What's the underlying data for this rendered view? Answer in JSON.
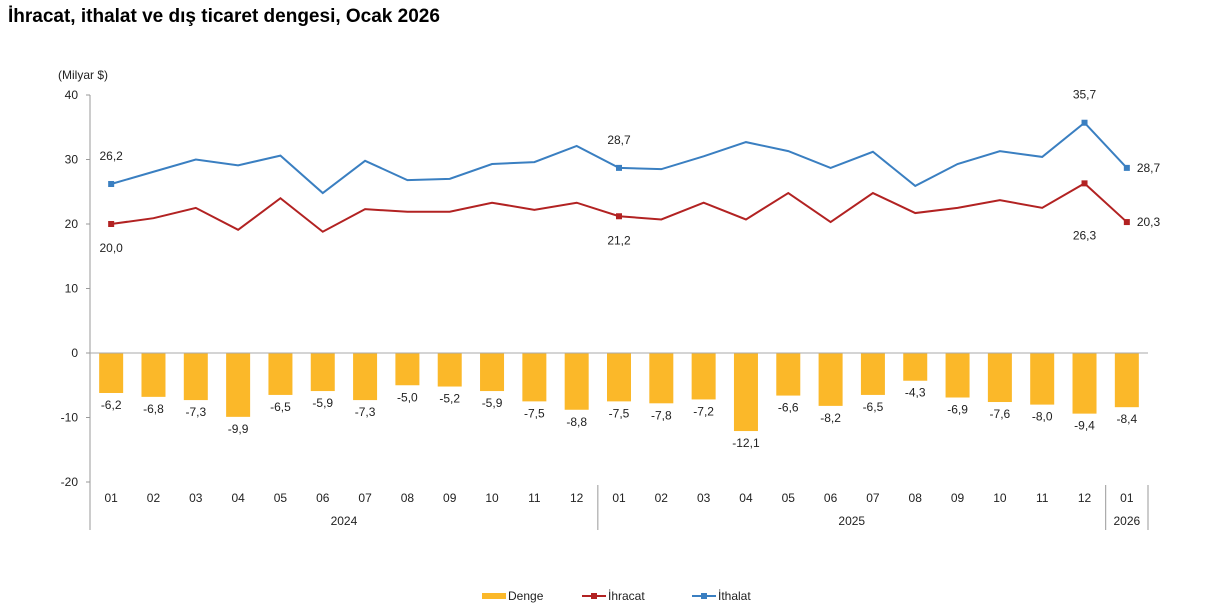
{
  "chart_data": {
    "type": "bar+line",
    "title": "İhracat, ithalat ve dış ticaret dengesi, Ocak 2026",
    "unit_label": "(Milyar $)",
    "ylim": [
      -20,
      40
    ],
    "yticks": [
      40,
      30,
      20,
      10,
      0,
      -10,
      -20
    ],
    "grid": false,
    "legend_position": "bottom",
    "categories": [
      "01",
      "02",
      "03",
      "04",
      "05",
      "06",
      "07",
      "08",
      "09",
      "10",
      "11",
      "12",
      "01",
      "02",
      "03",
      "04",
      "05",
      "06",
      "07",
      "08",
      "09",
      "10",
      "11",
      "12",
      "01"
    ],
    "year_groups": [
      {
        "label": "2024",
        "count": 12
      },
      {
        "label": "2025",
        "count": 12
      },
      {
        "label": "2026",
        "count": 1
      }
    ],
    "series": [
      {
        "name": "Denge",
        "type": "bar",
        "color": "#FBB829",
        "values": [
          -6.2,
          -6.8,
          -7.3,
          -9.9,
          -6.5,
          -5.9,
          -7.3,
          -5.0,
          -5.2,
          -5.9,
          -7.5,
          -8.8,
          -7.5,
          -7.8,
          -7.2,
          -12.1,
          -6.6,
          -8.2,
          -6.5,
          -4.3,
          -6.9,
          -7.6,
          -8.0,
          -9.4,
          -8.4
        ],
        "labels": [
          "-6,2",
          "-6,8",
          "-7,3",
          "-9,9",
          "-6,5",
          "-5,9",
          "-7,3",
          "-5,0",
          "-5,2",
          "-5,9",
          "-7,5",
          "-8,8",
          "-7,5",
          "-7,8",
          "-7,2",
          "-12,1",
          "-6,6",
          "-8,2",
          "-6,5",
          "-4,3",
          "-6,9",
          "-7,6",
          "-8,0",
          "-9,4",
          "-8,4"
        ]
      },
      {
        "name": "İhracat",
        "type": "line",
        "color": "#B22222",
        "values": [
          20.0,
          20.9,
          22.5,
          19.1,
          24.0,
          18.8,
          22.3,
          21.9,
          21.9,
          23.3,
          22.2,
          23.3,
          21.2,
          20.7,
          23.3,
          20.7,
          24.8,
          20.3,
          24.8,
          21.7,
          22.5,
          23.7,
          22.5,
          26.3,
          20.3
        ],
        "point_labels": [
          {
            "index": 0,
            "text": "20,0"
          },
          {
            "index": 12,
            "text": "21,2"
          },
          {
            "index": 23,
            "text": "26,3"
          },
          {
            "index": 24,
            "text": "20,3"
          }
        ]
      },
      {
        "name": "İthalat",
        "type": "line",
        "color": "#3A7FC1",
        "values": [
          26.2,
          28.1,
          30.0,
          29.1,
          30.6,
          24.8,
          29.8,
          26.8,
          27.0,
          29.3,
          29.6,
          32.1,
          28.7,
          28.5,
          30.5,
          32.7,
          31.3,
          28.7,
          31.2,
          25.9,
          29.3,
          31.3,
          30.4,
          35.7,
          28.7
        ],
        "point_labels": [
          {
            "index": 0,
            "text": "26,2"
          },
          {
            "index": 12,
            "text": "28,7"
          },
          {
            "index": 23,
            "text": "35,7"
          },
          {
            "index": 24,
            "text": "28,7"
          }
        ]
      }
    ]
  }
}
